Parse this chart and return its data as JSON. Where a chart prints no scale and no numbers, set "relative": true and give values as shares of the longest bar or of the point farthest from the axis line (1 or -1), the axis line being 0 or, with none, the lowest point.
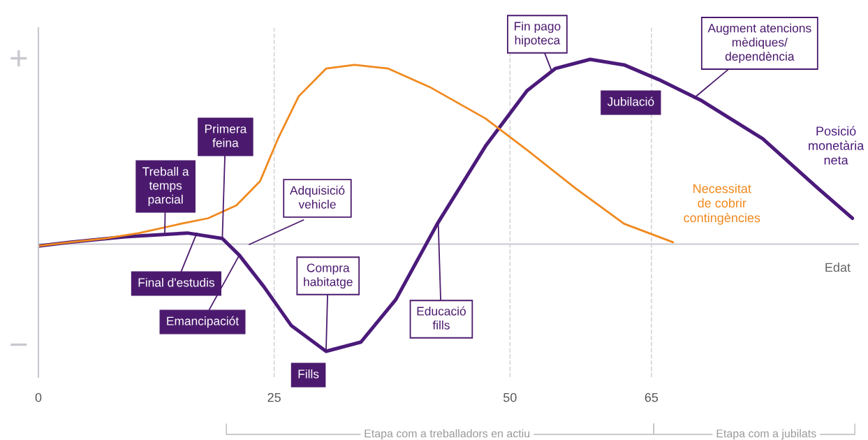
{
  "chart_data": {
    "type": "line",
    "relative": true,
    "xlabel": "Edat",
    "xlim": [
      0,
      87
    ],
    "xticks": [
      0,
      25,
      50,
      65
    ],
    "grid": false,
    "marker": "none",
    "line_style": "solid",
    "series": [
      {
        "name": "Posició\nmonetària\nneta",
        "color": "#4b1a7a",
        "x": [
          0,
          3.3,
          9.2,
          15.8,
          19.5,
          21.3,
          23.9,
          26.8,
          30.5,
          34.2,
          37.9,
          42.3,
          47.4,
          51.8,
          54.8,
          58.5,
          62.1,
          65.8,
          70.2,
          76.8,
          82.7,
          86.3
        ],
        "values": [
          -0.01,
          0.01,
          0.04,
          0.06,
          0.03,
          -0.06,
          -0.23,
          -0.44,
          -0.58,
          -0.53,
          -0.3,
          0.11,
          0.53,
          0.83,
          0.95,
          1.0,
          0.97,
          0.89,
          0.78,
          0.57,
          0.3,
          0.14
        ]
      },
      {
        "name": "Necessitat\nde cobrir\ncontingències",
        "color": "#f0891e",
        "x": [
          0,
          3.3,
          7.0,
          10.7,
          15.1,
          18.0,
          21.0,
          23.5,
          25.4,
          27.6,
          30.5,
          33.5,
          37.1,
          41.5,
          47.4,
          51.8,
          57.0,
          62.1,
          67.3
        ],
        "values": [
          -0.01,
          0.01,
          0.03,
          0.06,
          0.11,
          0.14,
          0.21,
          0.34,
          0.57,
          0.8,
          0.95,
          0.97,
          0.95,
          0.85,
          0.68,
          0.51,
          0.3,
          0.11,
          0.01
        ]
      }
    ],
    "ref_lines": [
      {
        "axis": "x",
        "value": 25,
        "color": "#d4d4dc",
        "line_style": "dashed"
      },
      {
        "axis": "x",
        "value": 50,
        "color": "#d4d4dc",
        "line_style": "dashed"
      },
      {
        "axis": "x",
        "value": 65,
        "color": "#d4d4dc",
        "line_style": "dashed"
      }
    ],
    "annotations": [
      {
        "text": "Treball a\ntemps\nparcial",
        "x": 13.4,
        "y": 0.06
      },
      {
        "text": "Primera\nfeina",
        "x": 19.5,
        "y": 0.03
      },
      {
        "text": "Final d'estudis",
        "x": 16.8,
        "y": 0.06
      },
      {
        "text": "Emancipaciót",
        "x": 21.3,
        "y": -0.06
      },
      "Adquisició\nvehicle",
      {
        "text": "Compra\nhabitatge",
        "x": 30.5,
        "y": -0.58
      },
      "Fills",
      {
        "text": "Educació\nfills",
        "x": 42.4,
        "y": 0.11
      },
      {
        "text": "Fin pago\nhipoteca",
        "x": 54.4,
        "y": 0.94
      },
      "Jubilació",
      {
        "text": "Augment atencions\nmèdiques/\ndependència",
        "x": 69.5,
        "y": 0.79
      },
      "+",
      "−",
      "Etapa com a treballadors en actiu",
      "Etapa com a jubilats"
    ]
  }
}
